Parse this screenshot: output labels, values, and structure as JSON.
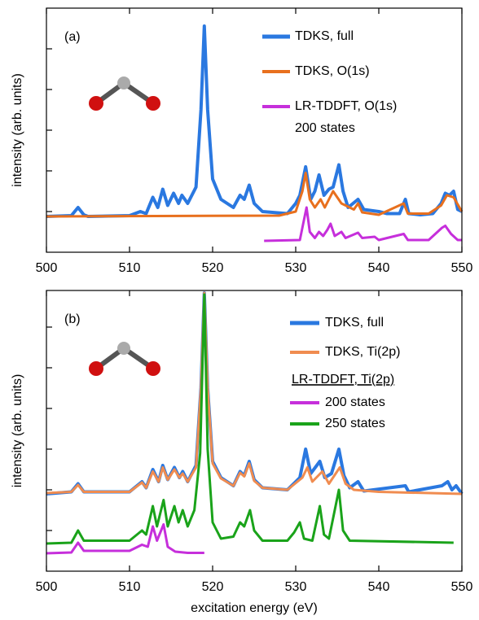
{
  "chart_data": [
    {
      "type": "line",
      "label": "(a)",
      "y_label": "intensity (arb. units)",
      "xlim": [
        500,
        550
      ],
      "xticks": [
        500,
        510,
        520,
        530,
        540,
        550
      ],
      "ylim": [
        0,
        6
      ],
      "yticks": [
        1,
        2,
        3,
        4,
        5
      ],
      "series": [
        {
          "name": "TDKS, full",
          "color": "#2a78e0",
          "width": 4,
          "x": [
            500,
            503,
            503.8,
            504.5,
            505,
            510,
            511.3,
            512,
            512.8,
            513.4,
            514,
            514.6,
            515.3,
            515.9,
            516.3,
            517,
            518,
            518.6,
            519,
            519.4,
            520,
            521,
            522.5,
            523.3,
            523.8,
            524.4,
            525,
            526,
            529,
            530,
            530.5,
            531.2,
            531.8,
            532.3,
            532.8,
            533.4,
            534,
            534.5,
            535.2,
            535.7,
            536.3,
            537.5,
            538.2,
            540,
            541,
            542.5,
            543.2,
            543.6,
            545,
            546.5,
            547.5,
            548,
            548.5,
            549,
            549.5,
            550
          ],
          "values": [
            0.88,
            0.9,
            1.1,
            0.92,
            0.88,
            0.9,
            1.0,
            0.95,
            1.35,
            1.1,
            1.55,
            1.15,
            1.45,
            1.2,
            1.4,
            1.2,
            1.6,
            3.5,
            5.56,
            3.5,
            1.8,
            1.3,
            1.1,
            1.4,
            1.3,
            1.65,
            1.2,
            1.0,
            0.95,
            1.2,
            1.4,
            2.1,
            1.3,
            1.5,
            1.9,
            1.4,
            1.55,
            1.6,
            2.15,
            1.5,
            1.1,
            1.3,
            1.05,
            1.0,
            0.95,
            0.95,
            1.3,
            0.95,
            0.92,
            0.95,
            1.2,
            1.45,
            1.4,
            1.5,
            1.05,
            1.0
          ]
        },
        {
          "name": "TDKS, O(1s)",
          "color": "#e8701e",
          "width": 3,
          "x": [
            500,
            528,
            530,
            530.8,
            531.2,
            531.7,
            532.3,
            533,
            533.5,
            534,
            534.5,
            535,
            535.5,
            537,
            537.5,
            538,
            540,
            543,
            543.5,
            546,
            547.5,
            548.2,
            549,
            550
          ],
          "values": [
            0.88,
            0.9,
            1.0,
            1.5,
            1.95,
            1.3,
            1.1,
            1.3,
            1.1,
            1.3,
            1.5,
            1.35,
            1.2,
            1.05,
            1.2,
            0.98,
            0.92,
            1.2,
            0.95,
            0.95,
            1.15,
            1.4,
            1.35,
            1.0
          ]
        },
        {
          "name": "LR-TDDFT, O(1s)",
          "legend_note": "200 states",
          "color": "#c62fdb",
          "width": 3,
          "x": [
            526.2,
            530.5,
            531,
            531.3,
            531.7,
            532.3,
            532.8,
            533.3,
            533.8,
            534.2,
            534.7,
            535.5,
            536,
            537.5,
            538,
            539.5,
            540,
            543,
            543.5,
            546,
            547.6,
            548,
            548.7,
            549.5,
            550
          ],
          "values": [
            0.28,
            0.3,
            0.8,
            1.1,
            0.5,
            0.35,
            0.5,
            0.4,
            0.55,
            0.7,
            0.4,
            0.5,
            0.35,
            0.48,
            0.35,
            0.38,
            0.3,
            0.45,
            0.3,
            0.3,
            0.6,
            0.65,
            0.45,
            0.3,
            0.3
          ]
        }
      ]
    },
    {
      "type": "line",
      "label": "(b)",
      "y_label": "intensity (arb. units)",
      "x_label": "excitation energy (eV)",
      "legend_heading": "LR-TDDFT, Ti(2p)",
      "xlim": [
        500,
        550
      ],
      "xticks": [
        500,
        510,
        520,
        530,
        540,
        550
      ],
      "ylim": [
        0,
        6.9
      ],
      "yticks": [
        1,
        2,
        3,
        4,
        5,
        6
      ],
      "series": [
        {
          "name": "TDKS, full",
          "color": "#2a78e0",
          "width": 4,
          "x": [
            500,
            503,
            503.8,
            504.5,
            510,
            511.5,
            512,
            512.8,
            513.5,
            514,
            514.6,
            515.4,
            516,
            516.4,
            517,
            518,
            518.6,
            519,
            519.4,
            520,
            521,
            522.5,
            523.3,
            523.8,
            524.4,
            525,
            526,
            529,
            530.5,
            531.2,
            531.8,
            532.9,
            533.5,
            534.3,
            535.2,
            535.8,
            536.5,
            537.5,
            538.2,
            543.2,
            543.6,
            547.6,
            548.3,
            548.8,
            549.3,
            550
          ],
          "values": [
            1.9,
            1.95,
            2.15,
            1.95,
            1.95,
            2.2,
            2.05,
            2.5,
            2.2,
            2.6,
            2.25,
            2.55,
            2.3,
            2.45,
            2.2,
            2.6,
            4.5,
            6.84,
            4.5,
            2.7,
            2.3,
            2.1,
            2.45,
            2.35,
            2.7,
            2.25,
            2.05,
            2.0,
            2.3,
            3.0,
            2.4,
            2.7,
            2.3,
            2.4,
            3.0,
            2.35,
            2.05,
            2.2,
            1.97,
            2.1,
            1.95,
            2.1,
            2.2,
            2.0,
            2.1,
            1.9
          ]
        },
        {
          "name": "TDKS, Ti(2p)",
          "color": "#f08c50",
          "width": 3,
          "x": [
            500,
            503,
            503.8,
            504.5,
            510,
            511.5,
            512,
            512.8,
            513.5,
            514,
            514.6,
            515.4,
            516,
            516.4,
            517,
            518,
            518.6,
            519,
            519.4,
            520,
            521,
            522.5,
            523.3,
            523.8,
            524.4,
            525,
            526,
            529,
            530.8,
            531.4,
            532,
            533.2,
            534,
            535.3,
            536,
            537,
            540,
            550
          ],
          "values": [
            1.92,
            1.95,
            2.12,
            1.95,
            1.95,
            2.18,
            2.05,
            2.45,
            2.2,
            2.55,
            2.25,
            2.5,
            2.3,
            2.4,
            2.2,
            2.55,
            4.5,
            6.84,
            4.5,
            2.65,
            2.28,
            2.1,
            2.42,
            2.33,
            2.65,
            2.22,
            2.05,
            2.0,
            2.3,
            2.55,
            2.2,
            2.45,
            2.15,
            2.55,
            2.15,
            2.0,
            1.95,
            1.9
          ]
        },
        {
          "name": "200 states",
          "color": "#c62fdb",
          "width": 3,
          "x": [
            500,
            503,
            503.8,
            504.5,
            510,
            511.5,
            512.2,
            512.8,
            513.3,
            514.1,
            514.6,
            515.5,
            517,
            519
          ],
          "values": [
            0.44,
            0.46,
            0.7,
            0.5,
            0.5,
            0.65,
            0.6,
            1.1,
            0.75,
            1.15,
            0.6,
            0.48,
            0.45,
            0.45
          ]
        },
        {
          "name": "250 states",
          "color": "#1aa31a",
          "width": 3,
          "x": [
            500,
            503,
            503.8,
            504.5,
            510,
            511.5,
            512,
            512.8,
            513.3,
            514.1,
            514.6,
            515.4,
            515.9,
            516.4,
            517,
            517.8,
            518.5,
            519,
            519.4,
            520,
            521,
            522.5,
            523.3,
            523.8,
            524.5,
            525,
            526,
            529,
            529.8,
            530.5,
            531,
            532,
            532.9,
            533.4,
            534,
            535.2,
            535.7,
            536.5,
            549
          ],
          "values": [
            0.68,
            0.7,
            1.0,
            0.75,
            0.75,
            1.0,
            0.9,
            1.6,
            1.1,
            1.75,
            1.1,
            1.6,
            1.2,
            1.5,
            1.1,
            1.5,
            2.9,
            6.8,
            3.0,
            1.2,
            0.8,
            0.85,
            1.2,
            1.1,
            1.5,
            1.0,
            0.75,
            0.75,
            0.95,
            1.2,
            0.8,
            0.75,
            1.6,
            0.9,
            0.8,
            2.0,
            1.0,
            0.75,
            0.7
          ]
        }
      ]
    }
  ]
}
